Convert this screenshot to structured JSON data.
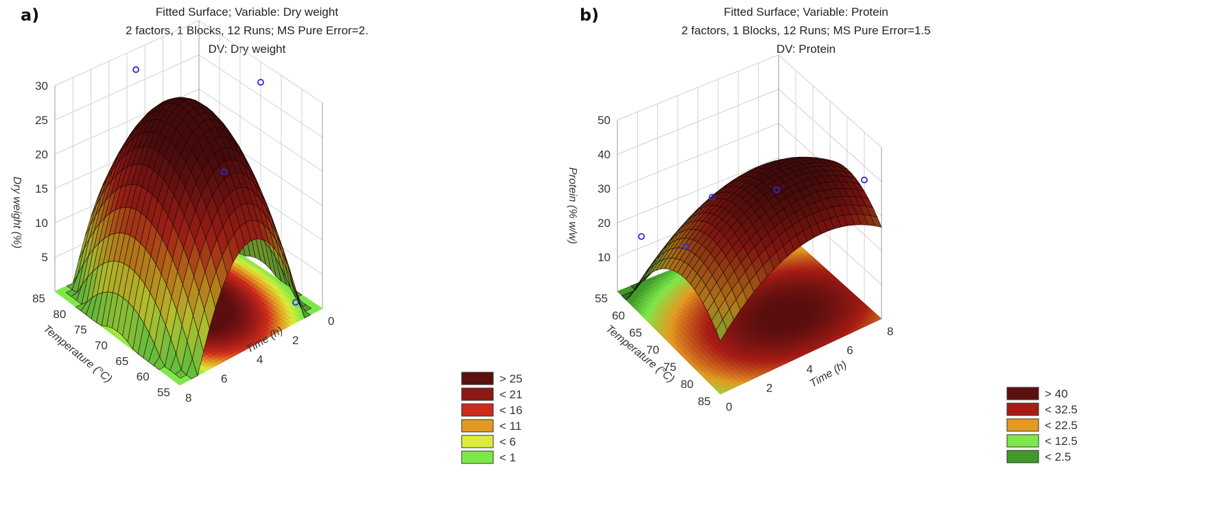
{
  "chart_data": [
    {
      "panel_label": "a)",
      "type": "surface3d",
      "title_lines": [
        "Fitted Surface; Variable: Dry weight",
        "2 factors, 1 Blocks, 12 Runs; MS Pure Error=2.",
        "DV: Dry weight"
      ],
      "xlabel": "Time (h)",
      "ylabel": "Temperature (°C)",
      "zlabel": "Dry weight (%)",
      "x_range": [
        0,
        8
      ],
      "y_range": [
        55,
        85
      ],
      "z_range": [
        0,
        30
      ],
      "x_ticks": [
        0,
        2,
        4,
        6,
        8
      ],
      "y_ticks": [
        55,
        60,
        65,
        70,
        75,
        80,
        85
      ],
      "z_ticks": [
        5,
        10,
        15,
        20,
        25,
        30
      ],
      "surface": {
        "peak_x": 4,
        "peak_y": 70,
        "peak_z": 29,
        "a": 1.75,
        "b": 0.06
      },
      "observed_points": [
        {
          "x": 3.5,
          "y": 85,
          "z": 27
        },
        {
          "x": 0,
          "y": 70,
          "z": 27
        },
        {
          "x": 2.5,
          "y": 68,
          "z": 18
        },
        {
          "x": 1.5,
          "y": 55,
          "z": 3
        }
      ],
      "legend": [
        {
          "label": "> 25",
          "color": "#5c0f0f"
        },
        {
          "label": "< 21",
          "color": "#8e1717"
        },
        {
          "label": "< 16",
          "color": "#cc2a1b"
        },
        {
          "label": "< 11",
          "color": "#e39a22"
        },
        {
          "label": "< 6",
          "color": "#dcec3a"
        },
        {
          "label": "< 1",
          "color": "#7ee84a"
        }
      ],
      "levels": [
        1,
        6,
        11,
        16,
        21,
        25
      ]
    },
    {
      "panel_label": "b)",
      "type": "surface3d",
      "title_lines": [
        "Fitted Surface; Variable: Protein",
        "2 factors, 1 Blocks, 12 Runs; MS Pure Error=1.5",
        "DV: Protein"
      ],
      "xlabel": "Time (h)",
      "ylabel": "Temperature (°C)",
      "zlabel": "Protein (% w/w)",
      "x_range": [
        0,
        8
      ],
      "y_range": [
        55,
        85
      ],
      "z_range": [
        0,
        50
      ],
      "x_ticks": [
        0,
        2,
        4,
        6,
        8
      ],
      "y_ticks": [
        55,
        60,
        65,
        70,
        75,
        80,
        85
      ],
      "z_ticks": [
        10,
        20,
        30,
        40,
        50
      ],
      "surface": {
        "peak_x": 5,
        "peak_y": 75,
        "peak_z": 41,
        "a": 0.7,
        "b": 0.08
      },
      "observed_points": [
        {
          "x": 0,
          "y": 62,
          "z": 23
        },
        {
          "x": 0,
          "y": 75,
          "z": 33
        },
        {
          "x": 4,
          "y": 78,
          "z": 42
        },
        {
          "x": 3,
          "y": 65,
          "z": 30
        },
        {
          "x": 8,
          "y": 80,
          "z": 36
        }
      ],
      "legend": [
        {
          "label": "> 40",
          "color": "#5c0f0f"
        },
        {
          "label": "< 32.5",
          "color": "#a81c14"
        },
        {
          "label": "< 22.5",
          "color": "#e39a22"
        },
        {
          "label": "< 12.5",
          "color": "#7ee84a"
        },
        {
          "label": "< 2.5",
          "color": "#3f9a2a"
        }
      ],
      "levels": [
        2.5,
        12.5,
        22.5,
        32.5,
        40
      ]
    }
  ]
}
